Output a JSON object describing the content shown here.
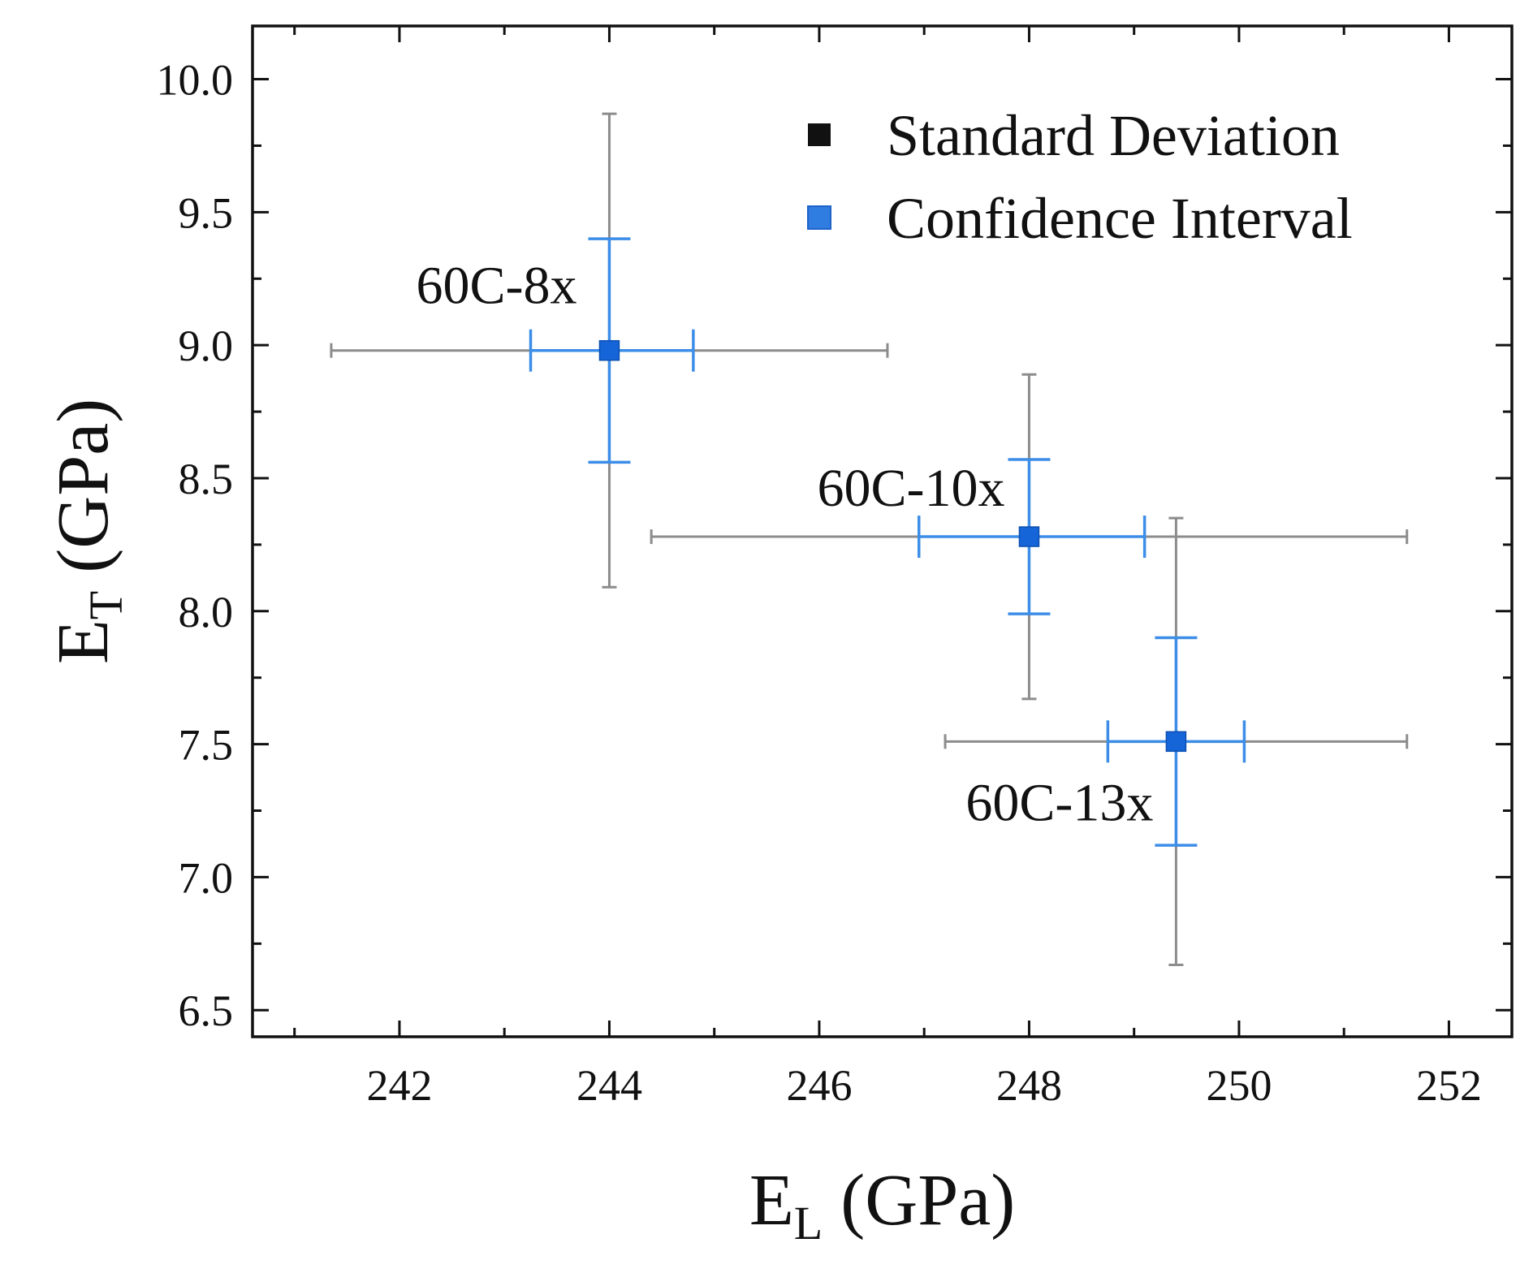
{
  "chart_data": {
    "type": "scatter",
    "xlabel": {
      "main": "E",
      "sub": "L",
      "unit": "(GPa)"
    },
    "ylabel": {
      "main": "E",
      "sub": "T",
      "unit": "(GPa)"
    },
    "xlim": [
      240.6,
      252.6
    ],
    "ylim": [
      6.4,
      10.2
    ],
    "xticks": [
      242,
      244,
      246,
      248,
      250,
      252
    ],
    "xtick_labels": [
      "242",
      "244",
      "246",
      "248",
      "250",
      "252"
    ],
    "xminor": [
      241,
      243,
      245,
      247,
      249,
      251
    ],
    "yticks": [
      6.5,
      7.0,
      7.5,
      8.0,
      8.5,
      9.0,
      9.5,
      10.0
    ],
    "ytick_labels": [
      "6.5",
      "7.0",
      "7.5",
      "8.0",
      "8.5",
      "9.0",
      "9.5",
      "10.0"
    ],
    "yminor": [
      6.75,
      7.25,
      7.75,
      8.25,
      8.75,
      9.25,
      9.75
    ],
    "grid": false,
    "legend": {
      "position": "top-right",
      "entries": [
        {
          "label": "Standard Deviation",
          "color": "#111111"
        },
        {
          "label": "Confidence Interval",
          "color": "#2f7de1"
        }
      ]
    },
    "points": [
      {
        "label": "60C-8x",
        "x": 244.0,
        "y": 8.98,
        "sd_x": [
          241.35,
          246.65
        ],
        "sd_y": [
          8.09,
          9.87
        ],
        "ci_x": [
          243.25,
          244.8
        ],
        "ci_y": [
          8.56,
          9.4
        ]
      },
      {
        "label": "60C-10x",
        "x": 248.0,
        "y": 8.28,
        "sd_x": [
          244.4,
          251.6
        ],
        "sd_y": [
          7.67,
          8.89
        ],
        "ci_x": [
          246.95,
          249.1
        ],
        "ci_y": [
          7.99,
          8.57
        ]
      },
      {
        "label": "60C-13x",
        "x": 249.4,
        "y": 7.51,
        "sd_x": [
          247.2,
          251.6
        ],
        "sd_y": [
          6.67,
          8.35
        ],
        "ci_x": [
          248.75,
          250.05
        ],
        "ci_y": [
          7.12,
          7.9
        ]
      }
    ],
    "colors": {
      "sd_bar": "#8c8c8c",
      "ci_bar": "#3c8de8",
      "marker": "#1565d8",
      "axis": "#111111"
    }
  }
}
